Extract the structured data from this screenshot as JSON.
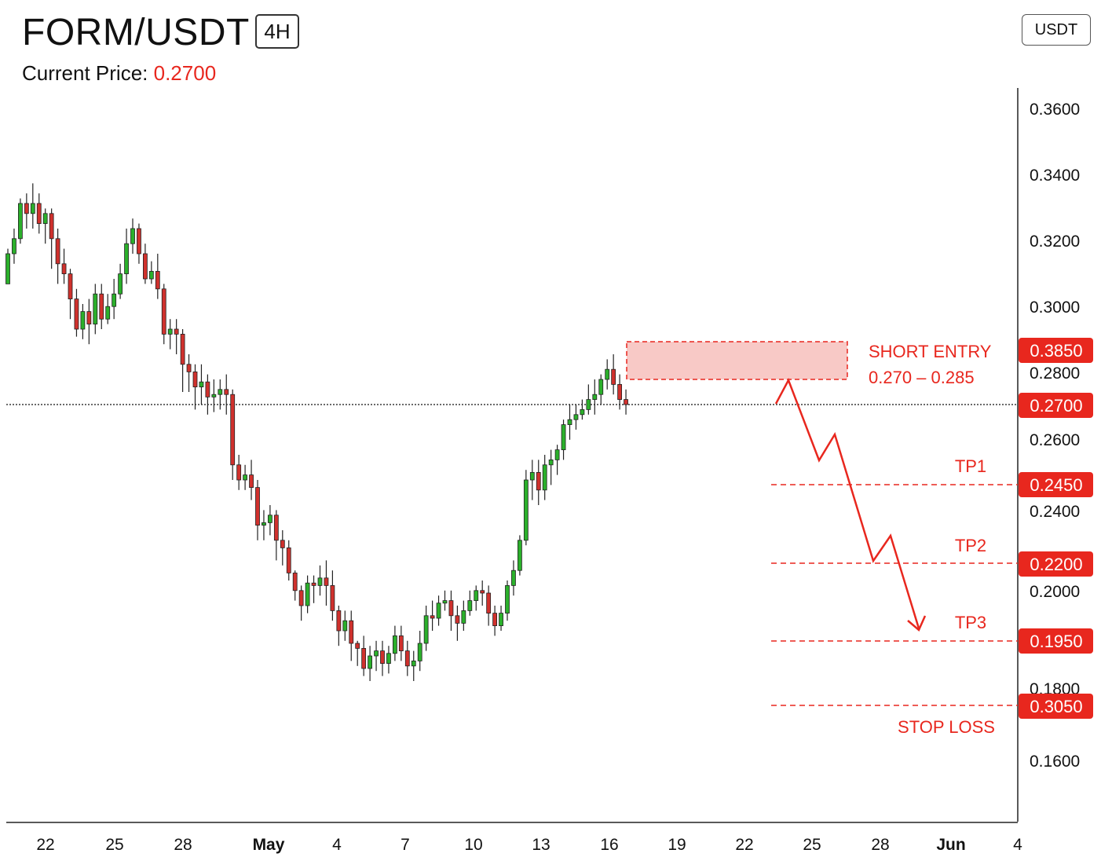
{
  "header": {
    "symbol": "FORM/USDT",
    "timeframe": "4H",
    "current_price_label": "Current Price:",
    "current_price_value": "0.2700",
    "quote_currency_button": "USDT"
  },
  "colors": {
    "up": "#2bb02b",
    "down": "#d0312d",
    "accent_red": "#e8271e",
    "zone_fill": "#f8c9c6"
  },
  "chart_data": {
    "type": "candlestick",
    "y_ticks": [
      "0.3600",
      "0.3400",
      "0.3200",
      "0.3000",
      "0.2800",
      "0.2600",
      "0.2400",
      "0.2000",
      "0.1800",
      "0.1600"
    ],
    "x_ticks": [
      "22",
      "25",
      "28",
      "May",
      "4",
      "7",
      "10",
      "13",
      "16",
      "19",
      "22",
      "25",
      "28",
      "Jun",
      "4"
    ],
    "current_price": 0.27,
    "short_entry_zone": {
      "label": "SHORT ENTRY",
      "range_text": "0.270 – 0.285",
      "badge": "0.3850"
    },
    "current_badge": "0.2700",
    "levels": [
      {
        "name": "TP1",
        "badge": "0.2450"
      },
      {
        "name": "TP2",
        "badge": "0.2200"
      },
      {
        "name": "TP3",
        "badge": "0.1950"
      },
      {
        "name": "STOP LOSS",
        "badge": "0.3050"
      }
    ],
    "candles": [
      [
        0.318,
        0.33,
        0.318,
        0.332
      ],
      [
        0.33,
        0.336,
        0.326,
        0.34
      ],
      [
        0.336,
        0.35,
        0.334,
        0.352
      ],
      [
        0.35,
        0.346,
        0.34,
        0.354
      ],
      [
        0.346,
        0.35,
        0.34,
        0.358
      ],
      [
        0.35,
        0.342,
        0.338,
        0.354
      ],
      [
        0.342,
        0.346,
        0.334,
        0.348
      ],
      [
        0.346,
        0.336,
        0.324,
        0.348
      ],
      [
        0.336,
        0.326,
        0.318,
        0.34
      ],
      [
        0.326,
        0.322,
        0.318,
        0.332
      ],
      [
        0.322,
        0.312,
        0.304,
        0.324
      ],
      [
        0.312,
        0.3,
        0.297,
        0.316
      ],
      [
        0.3,
        0.307,
        0.296,
        0.31
      ],
      [
        0.307,
        0.302,
        0.294,
        0.312
      ],
      [
        0.302,
        0.314,
        0.298,
        0.318
      ],
      [
        0.314,
        0.304,
        0.3,
        0.318
      ],
      [
        0.304,
        0.309,
        0.302,
        0.314
      ],
      [
        0.309,
        0.314,
        0.304,
        0.32
      ],
      [
        0.314,
        0.322,
        0.312,
        0.326
      ],
      [
        0.322,
        0.334,
        0.318,
        0.34
      ],
      [
        0.334,
        0.34,
        0.33,
        0.344
      ],
      [
        0.34,
        0.33,
        0.326,
        0.342
      ],
      [
        0.33,
        0.32,
        0.318,
        0.334
      ],
      [
        0.32,
        0.323,
        0.318,
        0.327
      ],
      [
        0.323,
        0.316,
        0.312,
        0.33
      ],
      [
        0.316,
        0.298,
        0.294,
        0.318
      ],
      [
        0.298,
        0.3,
        0.292,
        0.304
      ],
      [
        0.3,
        0.298,
        0.29,
        0.304
      ],
      [
        0.298,
        0.286,
        0.275,
        0.3
      ],
      [
        0.286,
        0.283,
        0.275,
        0.29
      ],
      [
        0.283,
        0.277,
        0.268,
        0.286
      ],
      [
        0.277,
        0.279,
        0.27,
        0.286
      ],
      [
        0.279,
        0.273,
        0.266,
        0.282
      ],
      [
        0.273,
        0.274,
        0.267,
        0.28
      ],
      [
        0.274,
        0.276,
        0.268,
        0.28
      ],
      [
        0.276,
        0.274,
        0.266,
        0.282
      ],
      [
        0.274,
        0.246,
        0.24,
        0.276
      ],
      [
        0.246,
        0.24,
        0.236,
        0.25
      ],
      [
        0.24,
        0.242,
        0.236,
        0.246
      ],
      [
        0.242,
        0.237,
        0.232,
        0.248
      ],
      [
        0.237,
        0.222,
        0.216,
        0.24
      ],
      [
        0.222,
        0.223,
        0.216,
        0.228
      ],
      [
        0.223,
        0.226,
        0.218,
        0.23
      ],
      [
        0.226,
        0.216,
        0.208,
        0.228
      ],
      [
        0.216,
        0.213,
        0.206,
        0.22
      ],
      [
        0.213,
        0.203,
        0.2,
        0.216
      ],
      [
        0.203,
        0.196,
        0.192,
        0.204
      ],
      [
        0.196,
        0.19,
        0.184,
        0.198
      ],
      [
        0.19,
        0.199,
        0.187,
        0.202
      ],
      [
        0.199,
        0.198,
        0.191,
        0.202
      ],
      [
        0.198,
        0.201,
        0.194,
        0.206
      ],
      [
        0.201,
        0.198,
        0.19,
        0.208
      ],
      [
        0.198,
        0.188,
        0.184,
        0.204
      ],
      [
        0.188,
        0.18,
        0.174,
        0.19
      ],
      [
        0.18,
        0.184,
        0.176,
        0.188
      ],
      [
        0.184,
        0.175,
        0.168,
        0.188
      ],
      [
        0.175,
        0.173,
        0.166,
        0.176
      ],
      [
        0.173,
        0.165,
        0.162,
        0.178
      ],
      [
        0.165,
        0.17,
        0.16,
        0.174
      ],
      [
        0.17,
        0.172,
        0.164,
        0.176
      ],
      [
        0.172,
        0.167,
        0.162,
        0.176
      ],
      [
        0.167,
        0.171,
        0.163,
        0.174
      ],
      [
        0.171,
        0.178,
        0.168,
        0.182
      ],
      [
        0.178,
        0.172,
        0.168,
        0.182
      ],
      [
        0.172,
        0.166,
        0.162,
        0.176
      ],
      [
        0.166,
        0.168,
        0.16,
        0.172
      ],
      [
        0.168,
        0.175,
        0.164,
        0.18
      ],
      [
        0.175,
        0.186,
        0.172,
        0.19
      ],
      [
        0.186,
        0.185,
        0.18,
        0.192
      ],
      [
        0.185,
        0.191,
        0.182,
        0.194
      ],
      [
        0.191,
        0.192,
        0.188,
        0.196
      ],
      [
        0.192,
        0.186,
        0.18,
        0.196
      ],
      [
        0.186,
        0.183,
        0.176,
        0.19
      ],
      [
        0.183,
        0.188,
        0.18,
        0.192
      ],
      [
        0.188,
        0.192,
        0.186,
        0.196
      ],
      [
        0.192,
        0.196,
        0.188,
        0.198
      ],
      [
        0.196,
        0.195,
        0.19,
        0.2
      ],
      [
        0.195,
        0.187,
        0.182,
        0.198
      ],
      [
        0.187,
        0.182,
        0.178,
        0.19
      ],
      [
        0.182,
        0.187,
        0.18,
        0.19
      ],
      [
        0.187,
        0.198,
        0.184,
        0.2
      ],
      [
        0.198,
        0.204,
        0.194,
        0.208
      ],
      [
        0.204,
        0.216,
        0.202,
        0.218
      ],
      [
        0.216,
        0.24,
        0.214,
        0.244
      ],
      [
        0.24,
        0.243,
        0.232,
        0.248
      ],
      [
        0.243,
        0.236,
        0.23,
        0.248
      ],
      [
        0.236,
        0.246,
        0.232,
        0.25
      ],
      [
        0.246,
        0.248,
        0.238,
        0.252
      ],
      [
        0.248,
        0.252,
        0.242,
        0.254
      ],
      [
        0.252,
        0.262,
        0.248,
        0.264
      ],
      [
        0.262,
        0.264,
        0.256,
        0.27
      ],
      [
        0.264,
        0.266,
        0.26,
        0.27
      ],
      [
        0.266,
        0.268,
        0.264,
        0.272
      ],
      [
        0.268,
        0.272,
        0.266,
        0.278
      ],
      [
        0.272,
        0.274,
        0.266,
        0.28
      ],
      [
        0.274,
        0.28,
        0.27,
        0.282
      ],
      [
        0.28,
        0.284,
        0.276,
        0.288
      ],
      [
        0.284,
        0.278,
        0.274,
        0.29
      ],
      [
        0.278,
        0.272,
        0.268,
        0.282
      ],
      [
        0.272,
        0.27,
        0.266,
        0.276
      ]
    ]
  }
}
